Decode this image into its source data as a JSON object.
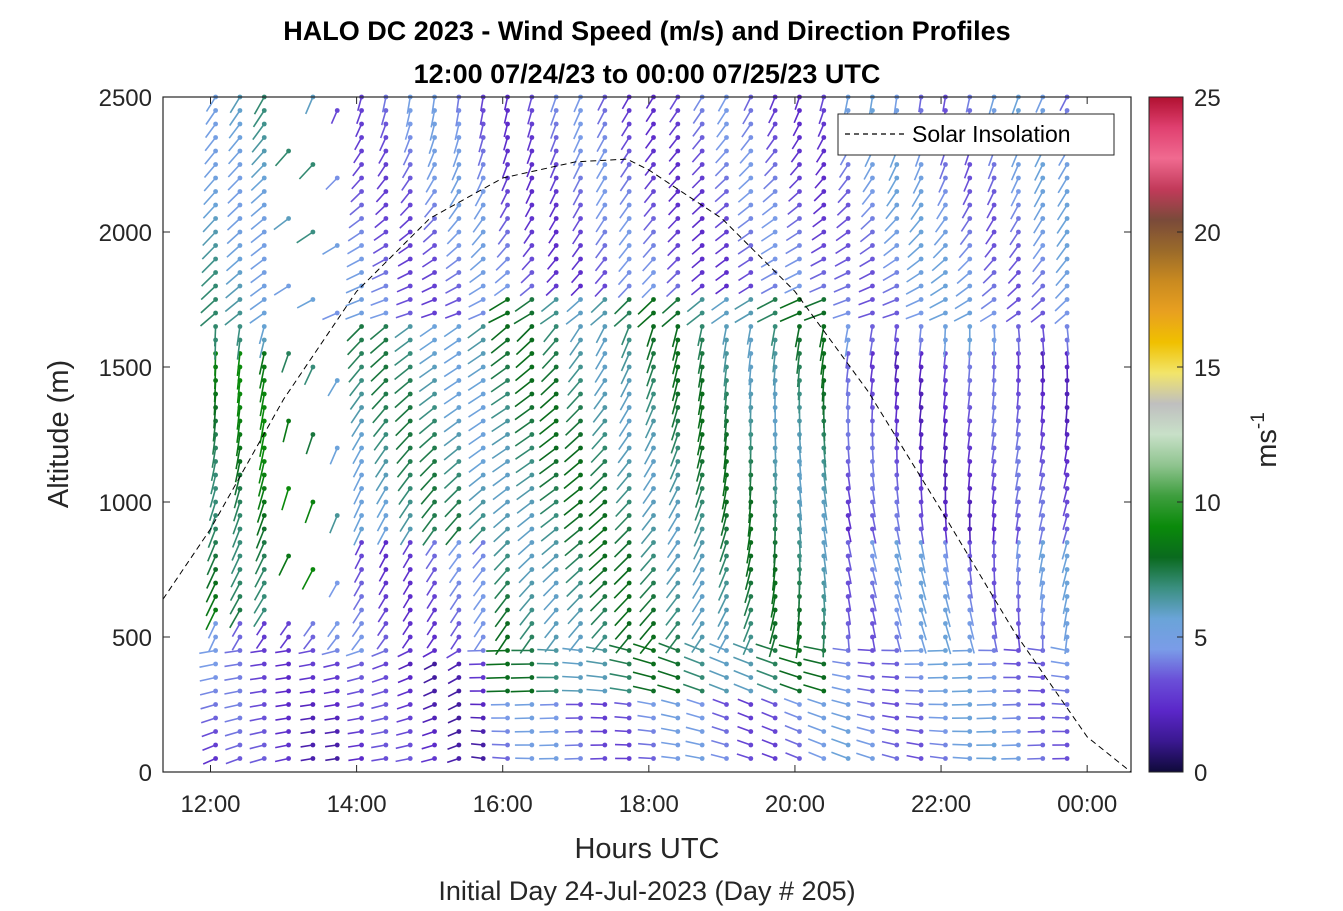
{
  "chart_data": {
    "type": "scatter",
    "title": "HALO DC 2023 - Wind Speed (m/s) and Direction Profiles",
    "subtitle": "12:00 07/24/23 to 00:00 07/25/23  UTC",
    "xlabel": "Hours UTC",
    "ylabel": "Altitude (m)",
    "footer": "Initial Day 24-Jul-2023 (Day # 205)",
    "xlim": [
      11.35,
      24.6
    ],
    "ylim": [
      0,
      2500
    ],
    "x_tick_values": [
      12,
      14,
      16,
      18,
      20,
      22,
      24
    ],
    "x_tick_labels": [
      "12:00",
      "14:00",
      "16:00",
      "18:00",
      "20:00",
      "22:00",
      "00:00"
    ],
    "y_tick_values": [
      0,
      500,
      1000,
      1500,
      2000,
      2500
    ],
    "y_tick_labels": [
      "0",
      "500",
      "1000",
      "1500",
      "2000",
      "2500"
    ],
    "profile_times_start": 12.07,
    "profile_times_end": 23.8,
    "profile_interval_hours": 0.333,
    "altitude_step_m": 50,
    "missing_data_note": "Profiles at 12:52-13:45 are sparse above 500 m",
    "colorbar": {
      "label": "ms",
      "label_superscript": "-1",
      "range": [
        0,
        25
      ],
      "tick_values": [
        0,
        5,
        10,
        15,
        20,
        25
      ],
      "tick_labels": [
        "0",
        "5",
        "10",
        "15",
        "20",
        "25"
      ],
      "colors": [
        "#0f0a3a",
        "#3a1890",
        "#5b27c9",
        "#6a4fd8",
        "#7a9ce8",
        "#6aa4d8",
        "#3a8f80",
        "#0a6a1e",
        "#0a8a0a",
        "#3e9e3e",
        "#8fc48f",
        "#c8e0c8",
        "#bfbfbf",
        "#f2e56a",
        "#f0c000",
        "#e8a020",
        "#c98a20",
        "#9a6a2a",
        "#7a4a3a",
        "#c23a5a",
        "#f06a90",
        "#e04070",
        "#b01030"
      ]
    },
    "series": [
      {
        "name": "Solar Insolation",
        "style": "dashed",
        "color": "#000000",
        "x": [
          11.35,
          12,
          13,
          14,
          15,
          16,
          17,
          17.7,
          18,
          19,
          20,
          21,
          22,
          23,
          24,
          24.6
        ],
        "y": [
          640,
          900,
          1380,
          1780,
          2050,
          2200,
          2260,
          2270,
          2230,
          2050,
          1780,
          1410,
          970,
          520,
          130,
          0
        ]
      }
    ]
  }
}
